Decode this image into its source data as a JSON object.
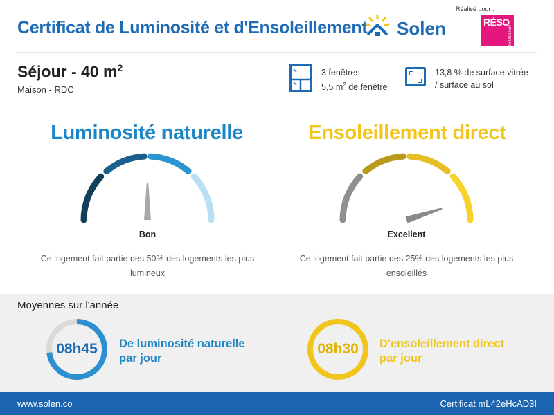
{
  "header": {
    "title": "Certificat de Luminosité et d'Ensoleillement",
    "brand": "Solen",
    "realise_pour": "Réalisé pour :",
    "partner_name": "RÉSO",
    "partner_sub": "IMMOBILIER"
  },
  "room": {
    "name": "Séjour - 40 m",
    "exponent": "2",
    "subtitle": "Maison - RDC"
  },
  "windows": {
    "count": "3 fenêtres",
    "area": "5,5 m",
    "area_exp": "2",
    "area_suffix": " de fenêtre"
  },
  "surface": {
    "line1": "13,8 % de surface vitrée",
    "line2": "/ surface au sol"
  },
  "luminosity": {
    "title": "Luminosité naturelle",
    "rating": "Bon",
    "description": "Ce logement fait partie des 50% des logements les plus lumineux",
    "gauge_position": 0.5,
    "colors": [
      "#123f5a",
      "#1b5f8c",
      "#2b95d1",
      "#b8dff2"
    ],
    "needle_color": "#a8a8a8"
  },
  "sunshine": {
    "title": "Ensoleillement direct",
    "rating": "Excellent",
    "description": "Ce logement fait partie des 25% des logements les plus ensoleillés",
    "gauge_position": 0.9,
    "colors": [
      "#8f8f8f",
      "#b89b1a",
      "#e8bd24",
      "#f7d22a"
    ],
    "needle_color": "#8a8a8a"
  },
  "averages": {
    "title": "Moyennes sur l'année",
    "luminosity": {
      "time": "08h45",
      "line1": "De luminosité naturelle",
      "line2": "par jour",
      "fraction": 0.73,
      "color": "#2b8fd0",
      "track": "#dadada"
    },
    "sunshine": {
      "time": "08h30",
      "line1": "D'ensoleillement direct",
      "line2": "par jour",
      "fraction": 1.0,
      "color": "#f2c51c",
      "track": "#dadada"
    }
  },
  "footer": {
    "website": "www.solen.co",
    "certificate": "Certificat mL42eHcAD3I"
  }
}
